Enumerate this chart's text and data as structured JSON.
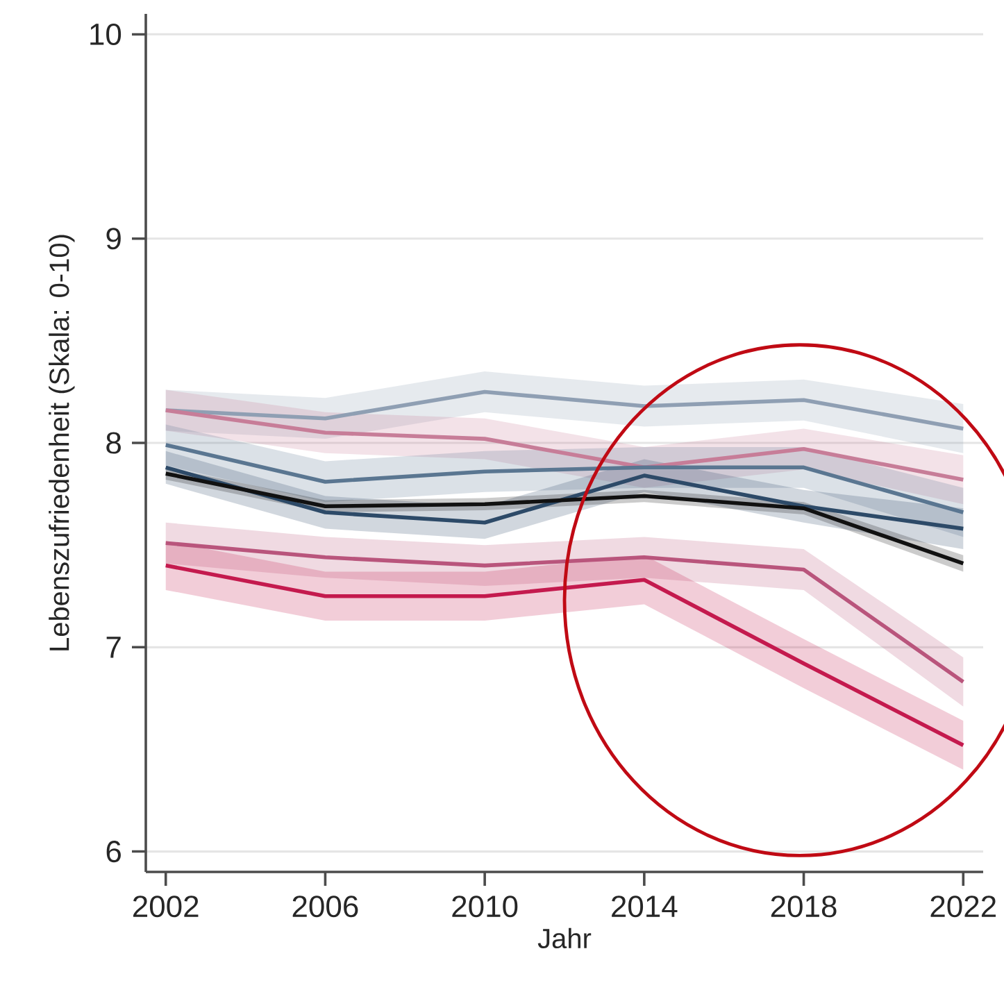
{
  "chart_data": {
    "type": "line",
    "xlabel": "Jahr",
    "ylabel": "Lebenszufriedenheit (Skala: 0-10)",
    "x": [
      2002,
      2006,
      2010,
      2014,
      2018,
      2022
    ],
    "xlim": [
      2001.5,
      2022.5
    ],
    "ylim": [
      5.9,
      10.1
    ],
    "xticks": [
      2002,
      2006,
      2010,
      2014,
      2018,
      2022
    ],
    "yticks": [
      6,
      7,
      8,
      9,
      10
    ],
    "grid": "y",
    "marker": "none",
    "line_style": "solid",
    "series": [
      {
        "color": "#8f9fb3",
        "values": [
          8.16,
          8.12,
          8.25,
          8.18,
          8.21,
          8.07
        ],
        "lower": [
          8.06,
          8.02,
          8.15,
          8.08,
          8.11,
          7.95
        ],
        "upper": [
          8.26,
          8.22,
          8.35,
          8.28,
          8.31,
          8.19
        ]
      },
      {
        "color": "#c77d98",
        "values": [
          8.16,
          8.05,
          8.02,
          7.88,
          7.97,
          7.82
        ],
        "lower": [
          8.06,
          7.95,
          7.92,
          7.78,
          7.87,
          7.7
        ],
        "upper": [
          8.26,
          8.15,
          8.12,
          7.98,
          8.07,
          7.94
        ]
      },
      {
        "color": "#5a7691",
        "values": [
          7.99,
          7.81,
          7.86,
          7.88,
          7.88,
          7.66
        ],
        "lower": [
          7.89,
          7.71,
          7.76,
          7.78,
          7.78,
          7.54
        ],
        "upper": [
          8.09,
          7.91,
          7.96,
          7.98,
          7.98,
          7.78
        ]
      },
      {
        "color": "#2d4a68",
        "values": [
          7.88,
          7.66,
          7.61,
          7.84,
          7.69,
          7.58
        ],
        "lower": [
          7.8,
          7.58,
          7.53,
          7.76,
          7.61,
          7.48
        ],
        "upper": [
          7.96,
          7.74,
          7.69,
          7.92,
          7.77,
          7.68
        ]
      },
      {
        "color": "#111111",
        "values": [
          7.85,
          7.69,
          7.7,
          7.74,
          7.68,
          7.41
        ],
        "lower": [
          7.82,
          7.66,
          7.67,
          7.71,
          7.65,
          7.37
        ],
        "upper": [
          7.88,
          7.72,
          7.73,
          7.77,
          7.71,
          7.45
        ]
      },
      {
        "color": "#b9557c",
        "values": [
          7.51,
          7.44,
          7.4,
          7.44,
          7.38,
          6.83
        ],
        "lower": [
          7.41,
          7.34,
          7.3,
          7.34,
          7.28,
          6.71
        ],
        "upper": [
          7.61,
          7.54,
          7.5,
          7.54,
          7.48,
          6.95
        ]
      },
      {
        "color": "#c41a4e",
        "values": [
          7.4,
          7.25,
          7.25,
          7.33,
          6.92,
          6.52
        ],
        "lower": [
          7.28,
          7.13,
          7.13,
          7.21,
          6.8,
          6.4
        ],
        "upper": [
          7.52,
          7.37,
          7.37,
          7.45,
          7.04,
          6.64
        ]
      }
    ]
  }
}
